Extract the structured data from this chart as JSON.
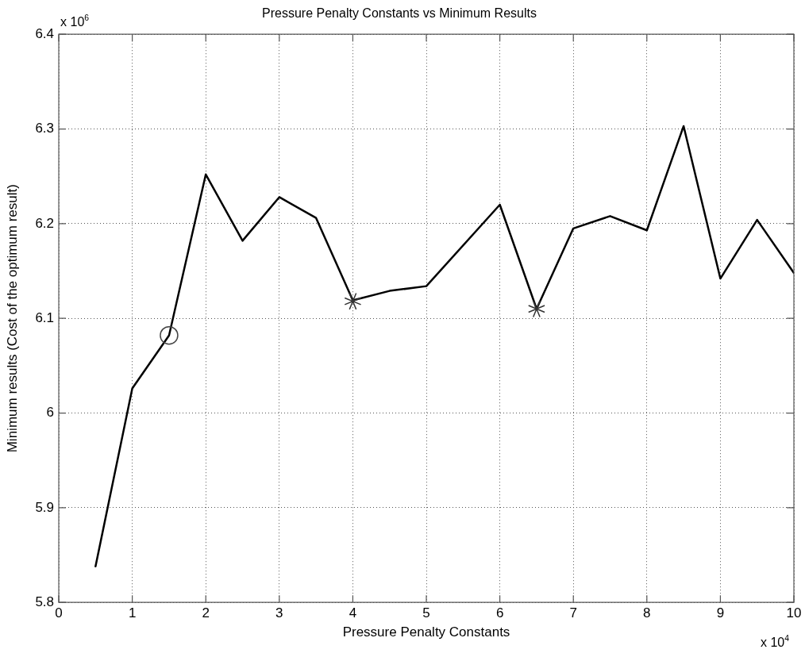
{
  "chart_data": {
    "type": "line",
    "title": "Pressure Penalty Constants vs Minimum Results",
    "xlabel": "Pressure Penalty Constants",
    "ylabel": "Minimum results (Cost of the optimum result)",
    "x": [
      0.5,
      1,
      1.5,
      2,
      2.5,
      3,
      3.5,
      4,
      4.5,
      5,
      6,
      6.5,
      7,
      7.5,
      8,
      8.5,
      9,
      9.5,
      10
    ],
    "series": [
      {
        "type": "line",
        "color": "#000000",
        "marker": "none",
        "values": [
          5.838,
          6.026,
          6.082,
          6.252,
          6.182,
          6.228,
          6.206,
          6.119,
          6.129,
          6.134,
          6.22,
          6.11,
          6.195,
          6.208,
          6.193,
          6.303,
          6.142,
          6.204,
          6.148
        ]
      },
      {
        "type": "scatter",
        "color": "#444444",
        "marker": "circle",
        "x": [
          1.5
        ],
        "values": [
          6.082
        ]
      },
      {
        "type": "scatter",
        "color": "#333333",
        "marker": "cross",
        "x": [
          4,
          6.5
        ],
        "values": [
          6.118,
          6.11
        ]
      }
    ],
    "xlim": [
      0,
      10
    ],
    "xticks": [
      0,
      1,
      2,
      3,
      4,
      5,
      6,
      7,
      8,
      9,
      10
    ],
    "ylim": [
      5.8,
      6.4
    ],
    "yticks": [
      5.8,
      5.9,
      6,
      6.1,
      6.2,
      6.3,
      6.4
    ],
    "grid": true,
    "line_style": "solid",
    "annotations": [
      "x 10$^{6}$",
      "x 10$^{4}$"
    ]
  }
}
